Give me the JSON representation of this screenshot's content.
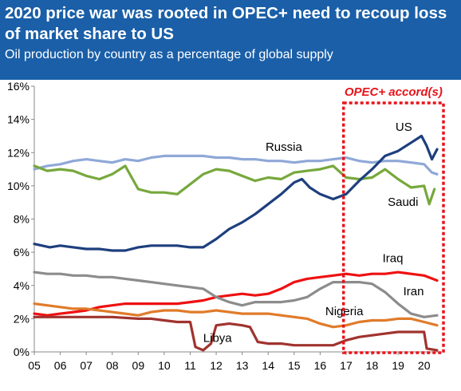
{
  "header": {
    "title": "2020 price war was rooted in OPEC+ need to recoup loss of market share to US",
    "subtitle": "Oil production by country as a percentage of global supply",
    "background": "#1a5fa8"
  },
  "chart_data": {
    "type": "line",
    "title": "",
    "xlabel": "",
    "ylabel": "",
    "x_ticks": [
      "05",
      "06",
      "07",
      "08",
      "09",
      "10",
      "11",
      "12",
      "13",
      "14",
      "15",
      "16",
      "17",
      "18",
      "19",
      "20"
    ],
    "y_ticks": [
      "0%",
      "2%",
      "4%",
      "6%",
      "8%",
      "10%",
      "12%",
      "14%",
      "16%"
    ],
    "xlim": [
      2005,
      2020.7
    ],
    "ylim": [
      0,
      16
    ],
    "grid": false,
    "series": [
      {
        "name": "Russia",
        "color": "#8fa8d8",
        "label_x": 2013.9,
        "label_y": 12.1,
        "points": [
          [
            2005,
            11.0
          ],
          [
            2005.5,
            11.2
          ],
          [
            2006,
            11.3
          ],
          [
            2006.5,
            11.5
          ],
          [
            2007,
            11.6
          ],
          [
            2007.5,
            11.5
          ],
          [
            2008,
            11.4
          ],
          [
            2008.5,
            11.6
          ],
          [
            2009,
            11.5
          ],
          [
            2009.5,
            11.7
          ],
          [
            2010,
            11.8
          ],
          [
            2010.5,
            11.8
          ],
          [
            2011,
            11.8
          ],
          [
            2011.5,
            11.8
          ],
          [
            2012,
            11.7
          ],
          [
            2012.5,
            11.7
          ],
          [
            2013,
            11.6
          ],
          [
            2013.5,
            11.6
          ],
          [
            2014,
            11.5
          ],
          [
            2014.5,
            11.5
          ],
          [
            2015,
            11.4
          ],
          [
            2015.5,
            11.5
          ],
          [
            2016,
            11.5
          ],
          [
            2016.5,
            11.6
          ],
          [
            2017,
            11.7
          ],
          [
            2017.5,
            11.5
          ],
          [
            2018,
            11.4
          ],
          [
            2018.5,
            11.5
          ],
          [
            2019,
            11.5
          ],
          [
            2019.5,
            11.4
          ],
          [
            2020,
            11.3
          ],
          [
            2020.3,
            10.8
          ],
          [
            2020.5,
            10.7
          ]
        ]
      },
      {
        "name": "Saudi",
        "color": "#77a83c",
        "label_x": 2018.6,
        "label_y": 8.8,
        "points": [
          [
            2005,
            11.2
          ],
          [
            2005.5,
            10.9
          ],
          [
            2006,
            11.0
          ],
          [
            2006.5,
            10.9
          ],
          [
            2007,
            10.6
          ],
          [
            2007.5,
            10.4
          ],
          [
            2008,
            10.7
          ],
          [
            2008.5,
            11.2
          ],
          [
            2009,
            9.8
          ],
          [
            2009.5,
            9.6
          ],
          [
            2010,
            9.6
          ],
          [
            2010.5,
            9.5
          ],
          [
            2011,
            10.1
          ],
          [
            2011.5,
            10.7
          ],
          [
            2012,
            11.0
          ],
          [
            2012.5,
            10.9
          ],
          [
            2013,
            10.6
          ],
          [
            2013.5,
            10.3
          ],
          [
            2014,
            10.5
          ],
          [
            2014.5,
            10.4
          ],
          [
            2015,
            10.8
          ],
          [
            2015.5,
            10.9
          ],
          [
            2016,
            11.0
          ],
          [
            2016.5,
            11.2
          ],
          [
            2017,
            10.5
          ],
          [
            2017.5,
            10.4
          ],
          [
            2018,
            10.5
          ],
          [
            2018.5,
            11.0
          ],
          [
            2019,
            10.4
          ],
          [
            2019.5,
            9.9
          ],
          [
            2020,
            10.0
          ],
          [
            2020.2,
            8.9
          ],
          [
            2020.4,
            9.8
          ]
        ]
      },
      {
        "name": "US",
        "color": "#1e3f7e",
        "label_x": 2018.9,
        "label_y": 13.3,
        "points": [
          [
            2005,
            6.5
          ],
          [
            2005.3,
            6.4
          ],
          [
            2005.6,
            6.3
          ],
          [
            2006,
            6.4
          ],
          [
            2006.5,
            6.3
          ],
          [
            2007,
            6.2
          ],
          [
            2007.5,
            6.2
          ],
          [
            2008,
            6.1
          ],
          [
            2008.5,
            6.1
          ],
          [
            2009,
            6.3
          ],
          [
            2009.5,
            6.4
          ],
          [
            2010,
            6.4
          ],
          [
            2010.5,
            6.4
          ],
          [
            2011,
            6.3
          ],
          [
            2011.5,
            6.3
          ],
          [
            2012,
            6.8
          ],
          [
            2012.5,
            7.4
          ],
          [
            2013,
            7.8
          ],
          [
            2013.5,
            8.3
          ],
          [
            2014,
            8.9
          ],
          [
            2014.5,
            9.5
          ],
          [
            2015,
            10.2
          ],
          [
            2015.3,
            10.4
          ],
          [
            2015.6,
            9.9
          ],
          [
            2016,
            9.5
          ],
          [
            2016.5,
            9.2
          ],
          [
            2017,
            9.5
          ],
          [
            2017.5,
            10.3
          ],
          [
            2018,
            11.0
          ],
          [
            2018.5,
            11.8
          ],
          [
            2019,
            12.1
          ],
          [
            2019.5,
            12.6
          ],
          [
            2019.9,
            13.0
          ],
          [
            2020.1,
            12.4
          ],
          [
            2020.3,
            11.6
          ],
          [
            2020.5,
            12.2
          ]
        ]
      },
      {
        "name": "Iraq",
        "color": "#ee1111",
        "label_x": 2018.4,
        "label_y": 5.4,
        "points": [
          [
            2005,
            2.3
          ],
          [
            2005.5,
            2.2
          ],
          [
            2006,
            2.3
          ],
          [
            2006.5,
            2.4
          ],
          [
            2007,
            2.5
          ],
          [
            2007.5,
            2.7
          ],
          [
            2008,
            2.8
          ],
          [
            2008.5,
            2.9
          ],
          [
            2009,
            2.9
          ],
          [
            2009.5,
            2.9
          ],
          [
            2010,
            2.9
          ],
          [
            2010.5,
            2.9
          ],
          [
            2011,
            3.0
          ],
          [
            2011.5,
            3.1
          ],
          [
            2012,
            3.3
          ],
          [
            2012.5,
            3.4
          ],
          [
            2013,
            3.5
          ],
          [
            2013.5,
            3.4
          ],
          [
            2014,
            3.5
          ],
          [
            2014.5,
            3.8
          ],
          [
            2015,
            4.2
          ],
          [
            2015.5,
            4.4
          ],
          [
            2016,
            4.5
          ],
          [
            2016.5,
            4.6
          ],
          [
            2017,
            4.7
          ],
          [
            2017.5,
            4.6
          ],
          [
            2018,
            4.7
          ],
          [
            2018.5,
            4.7
          ],
          [
            2019,
            4.8
          ],
          [
            2019.5,
            4.7
          ],
          [
            2020,
            4.6
          ],
          [
            2020.5,
            4.3
          ]
        ]
      },
      {
        "name": "Iran",
        "color": "#8c8c8c",
        "label_x": 2019.2,
        "label_y": 3.4,
        "points": [
          [
            2005,
            4.8
          ],
          [
            2005.5,
            4.7
          ],
          [
            2006,
            4.7
          ],
          [
            2006.5,
            4.6
          ],
          [
            2007,
            4.6
          ],
          [
            2007.5,
            4.5
          ],
          [
            2008,
            4.5
          ],
          [
            2008.5,
            4.4
          ],
          [
            2009,
            4.3
          ],
          [
            2009.5,
            4.2
          ],
          [
            2010,
            4.1
          ],
          [
            2010.5,
            4.0
          ],
          [
            2011,
            3.9
          ],
          [
            2011.5,
            3.8
          ],
          [
            2012,
            3.3
          ],
          [
            2012.5,
            3.0
          ],
          [
            2013,
            2.8
          ],
          [
            2013.5,
            3.0
          ],
          [
            2014,
            3.0
          ],
          [
            2014.5,
            3.0
          ],
          [
            2015,
            3.1
          ],
          [
            2015.5,
            3.3
          ],
          [
            2016,
            3.8
          ],
          [
            2016.5,
            4.2
          ],
          [
            2017,
            4.2
          ],
          [
            2017.5,
            4.2
          ],
          [
            2018,
            4.1
          ],
          [
            2018.5,
            3.6
          ],
          [
            2019,
            2.9
          ],
          [
            2019.5,
            2.3
          ],
          [
            2020,
            2.1
          ],
          [
            2020.5,
            2.2
          ]
        ]
      },
      {
        "name": "Nigeria",
        "color": "#e07b2a",
        "label_x": 2016.2,
        "label_y": 2.2,
        "points": [
          [
            2005,
            2.9
          ],
          [
            2005.5,
            2.8
          ],
          [
            2006,
            2.7
          ],
          [
            2006.5,
            2.6
          ],
          [
            2007,
            2.6
          ],
          [
            2007.5,
            2.5
          ],
          [
            2008,
            2.4
          ],
          [
            2008.5,
            2.3
          ],
          [
            2009,
            2.2
          ],
          [
            2009.5,
            2.4
          ],
          [
            2010,
            2.5
          ],
          [
            2010.5,
            2.5
          ],
          [
            2011,
            2.4
          ],
          [
            2011.5,
            2.4
          ],
          [
            2012,
            2.5
          ],
          [
            2012.5,
            2.4
          ],
          [
            2013,
            2.3
          ],
          [
            2013.5,
            2.3
          ],
          [
            2014,
            2.3
          ],
          [
            2014.5,
            2.2
          ],
          [
            2015,
            2.1
          ],
          [
            2015.5,
            2.0
          ],
          [
            2016,
            1.7
          ],
          [
            2016.5,
            1.5
          ],
          [
            2017,
            1.6
          ],
          [
            2017.5,
            1.8
          ],
          [
            2018,
            1.9
          ],
          [
            2018.5,
            1.9
          ],
          [
            2019,
            2.0
          ],
          [
            2019.5,
            2.0
          ],
          [
            2020,
            1.8
          ],
          [
            2020.5,
            1.6
          ]
        ]
      },
      {
        "name": "Libya",
        "color": "#a0332e",
        "label_x": 2011.5,
        "label_y": 0.6,
        "points": [
          [
            2005,
            2.1
          ],
          [
            2006,
            2.1
          ],
          [
            2007,
            2.1
          ],
          [
            2008,
            2.1
          ],
          [
            2009,
            2.0
          ],
          [
            2009.5,
            2.0
          ],
          [
            2010,
            1.9
          ],
          [
            2010.5,
            1.8
          ],
          [
            2011,
            1.8
          ],
          [
            2011.2,
            0.3
          ],
          [
            2011.5,
            0.1
          ],
          [
            2011.8,
            0.5
          ],
          [
            2012,
            1.6
          ],
          [
            2012.5,
            1.7
          ],
          [
            2013,
            1.6
          ],
          [
            2013.3,
            1.5
          ],
          [
            2013.6,
            0.6
          ],
          [
            2014,
            0.5
          ],
          [
            2014.5,
            0.5
          ],
          [
            2015,
            0.4
          ],
          [
            2015.5,
            0.4
          ],
          [
            2016,
            0.4
          ],
          [
            2016.5,
            0.4
          ],
          [
            2017,
            0.7
          ],
          [
            2017.5,
            0.9
          ],
          [
            2018,
            1.0
          ],
          [
            2018.5,
            1.1
          ],
          [
            2019,
            1.2
          ],
          [
            2019.5,
            1.2
          ],
          [
            2020,
            1.2
          ],
          [
            2020.1,
            0.2
          ],
          [
            2020.5,
            0.1
          ]
        ]
      }
    ],
    "annotation": {
      "text": "OPEC+ accord(s)",
      "color": "#e8141b",
      "x_start": 2016.9,
      "x_end": 2020.7
    }
  }
}
